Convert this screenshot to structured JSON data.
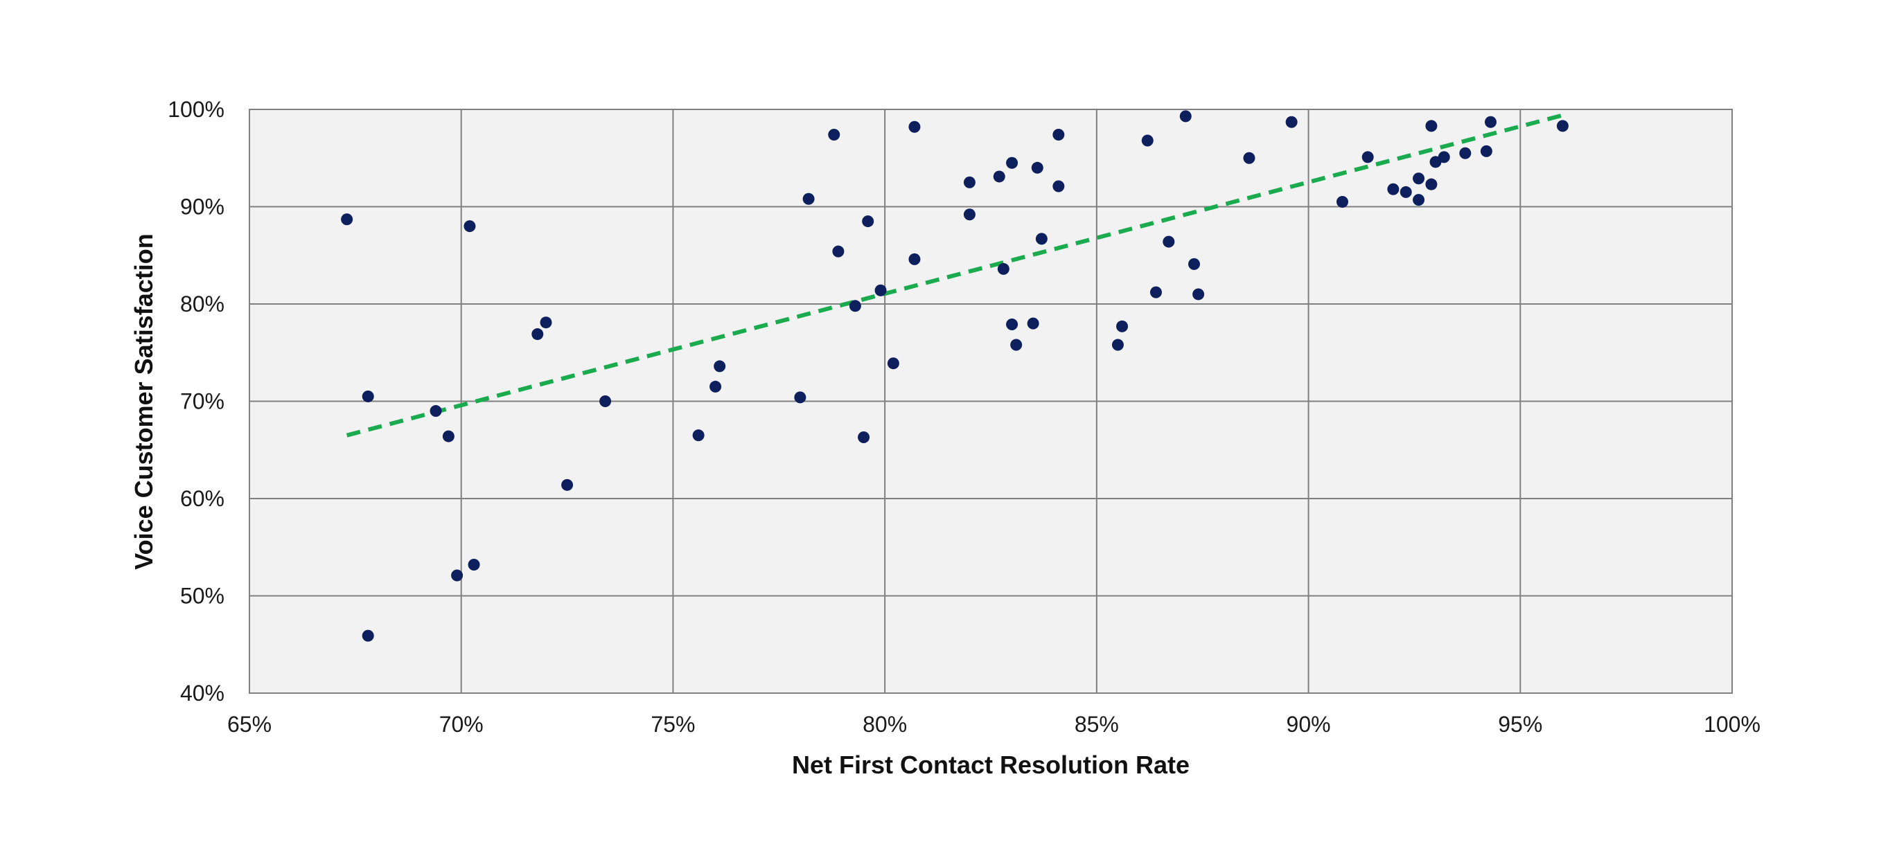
{
  "chart_data": {
    "type": "scatter",
    "title": "",
    "xlabel": "Net First Contact Resolution Rate",
    "ylabel": "Voice Customer Satisfaction",
    "xlim": [
      0.65,
      1.0
    ],
    "ylim": [
      0.4,
      1.0
    ],
    "x_ticks": [
      0.65,
      0.7,
      0.75,
      0.8,
      0.85,
      0.9,
      0.95,
      1.0
    ],
    "x_tick_labels": [
      "65%",
      "70%",
      "75%",
      "80%",
      "85%",
      "90%",
      "95%",
      "100%"
    ],
    "y_ticks": [
      0.4,
      0.5,
      0.6,
      0.7,
      0.8,
      0.9,
      1.0
    ],
    "y_tick_labels": [
      "40%",
      "50%",
      "60%",
      "70%",
      "80%",
      "90%",
      "100%"
    ],
    "grid": true,
    "legend": "none",
    "colors": {
      "plot_background": "#f2f2f2",
      "grid": "#808080",
      "points": "#0d1f5c",
      "trendline": "#1aab4e"
    },
    "series": [
      {
        "points": [
          [
            0.673,
            0.887
          ],
          [
            0.678,
            0.705
          ],
          [
            0.678,
            0.459
          ],
          [
            0.694,
            0.69
          ],
          [
            0.697,
            0.664
          ],
          [
            0.699,
            0.521
          ],
          [
            0.702,
            0.88
          ],
          [
            0.703,
            0.532
          ],
          [
            0.718,
            0.769
          ],
          [
            0.72,
            0.781
          ],
          [
            0.725,
            0.614
          ],
          [
            0.734,
            0.7
          ],
          [
            0.756,
            0.665
          ],
          [
            0.76,
            0.715
          ],
          [
            0.761,
            0.736
          ],
          [
            0.78,
            0.704
          ],
          [
            0.782,
            0.908
          ],
          [
            0.788,
            0.974
          ],
          [
            0.789,
            0.854
          ],
          [
            0.793,
            0.798
          ],
          [
            0.795,
            0.663
          ],
          [
            0.796,
            0.885
          ],
          [
            0.799,
            0.814
          ],
          [
            0.802,
            0.739
          ],
          [
            0.807,
            0.846
          ],
          [
            0.807,
            0.982
          ],
          [
            0.82,
            0.925
          ],
          [
            0.82,
            0.892
          ],
          [
            0.827,
            0.931
          ],
          [
            0.828,
            0.836
          ],
          [
            0.83,
            0.945
          ],
          [
            0.83,
            0.779
          ],
          [
            0.831,
            0.758
          ],
          [
            0.835,
            0.78
          ],
          [
            0.836,
            0.94
          ],
          [
            0.837,
            0.867
          ],
          [
            0.841,
            0.974
          ],
          [
            0.841,
            0.921
          ],
          [
            0.855,
            0.758
          ],
          [
            0.856,
            0.777
          ],
          [
            0.862,
            0.968
          ],
          [
            0.864,
            0.812
          ],
          [
            0.867,
            0.864
          ],
          [
            0.871,
            0.993
          ],
          [
            0.873,
            0.841
          ],
          [
            0.874,
            0.81
          ],
          [
            0.886,
            0.95
          ],
          [
            0.896,
            0.987
          ],
          [
            0.908,
            0.905
          ],
          [
            0.914,
            0.951
          ],
          [
            0.92,
            0.918
          ],
          [
            0.923,
            0.915
          ],
          [
            0.926,
            0.907
          ],
          [
            0.926,
            0.929
          ],
          [
            0.929,
            0.923
          ],
          [
            0.929,
            0.983
          ],
          [
            0.93,
            0.946
          ],
          [
            0.932,
            0.951
          ],
          [
            0.937,
            0.955
          ],
          [
            0.942,
            0.957
          ],
          [
            0.943,
            0.987
          ],
          [
            0.96,
            0.983
          ]
        ]
      }
    ],
    "trendline": {
      "style": "dashed",
      "x": [
        0.673,
        0.96
      ],
      "y": [
        0.665,
        0.994
      ]
    }
  }
}
